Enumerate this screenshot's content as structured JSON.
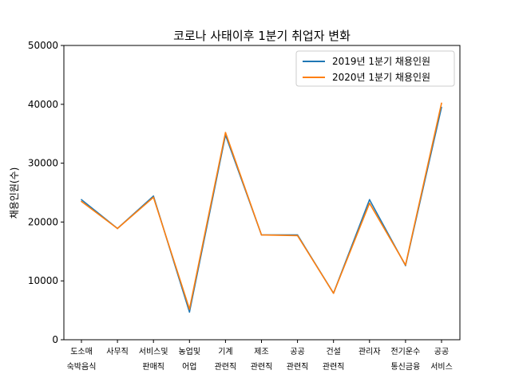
{
  "chart_data": {
    "type": "line",
    "title": "코로나 사태이후 1분기 취업자 변화",
    "xlabel": "",
    "ylabel": "채용인원(수)",
    "ylim": [
      0,
      50000
    ],
    "yticks": [
      0,
      10000,
      20000,
      30000,
      40000,
      50000
    ],
    "categories": [
      [
        "도소매",
        "숙박음식"
      ],
      [
        "사무직"
      ],
      [
        "서비스및",
        "판매직"
      ],
      [
        "농업및",
        "어업"
      ],
      [
        "기계",
        "관련직"
      ],
      [
        "제조",
        "관련직"
      ],
      [
        "공공",
        "관련직"
      ],
      [
        "건설",
        "관련직"
      ],
      [
        "관리자"
      ],
      [
        "전기운수",
        "통신금융"
      ],
      [
        "공공",
        "서비스"
      ]
    ],
    "series": [
      {
        "name": "2019년 1분기 채용인원",
        "color": "#1f77b4",
        "values": [
          23800,
          18900,
          24400,
          4700,
          34800,
          17800,
          17800,
          7900,
          23800,
          12600,
          39500
        ]
      },
      {
        "name": "2020년 1분기 채용인원",
        "color": "#ff7f0e",
        "values": [
          23500,
          18900,
          24200,
          5200,
          35200,
          17800,
          17700,
          7900,
          23200,
          12700,
          40200
        ]
      }
    ],
    "legend_position": "top-right",
    "grid": false
  }
}
